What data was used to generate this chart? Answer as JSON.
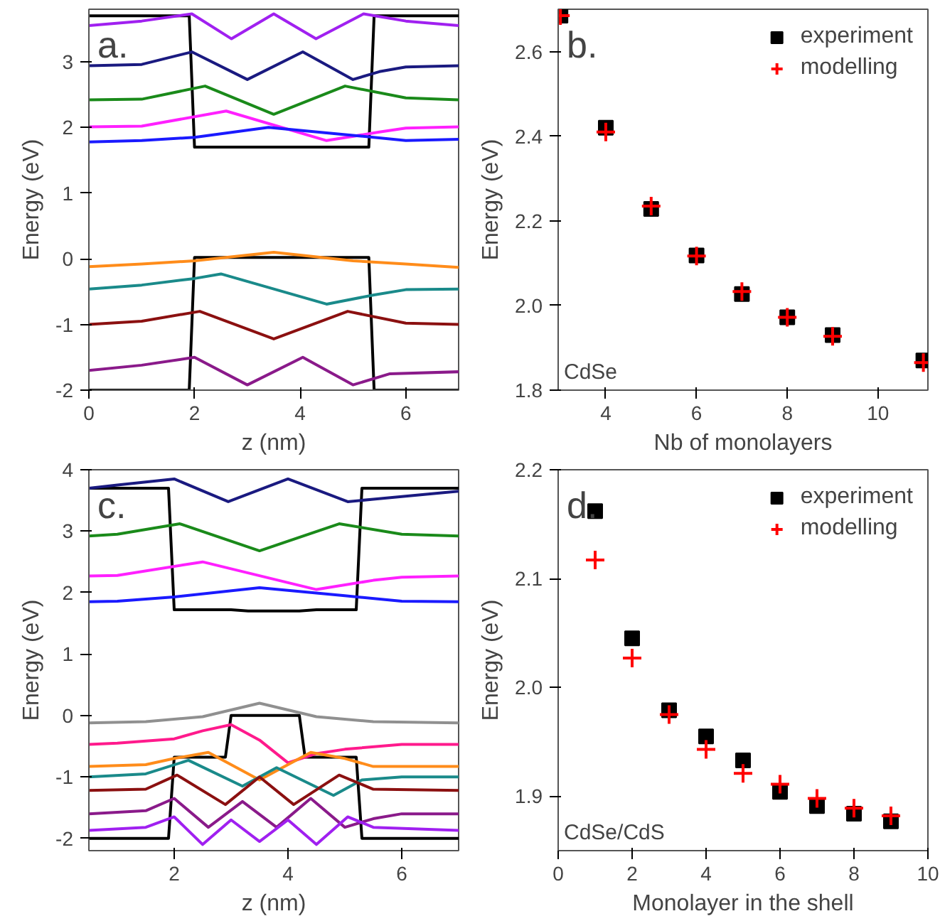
{
  "chart_data": [
    {
      "type": "line",
      "xlabel": "z (nm)",
      "ylabel": "Energy (eV)",
      "annotations": [
        "a."
      ],
      "xlim": [
        0,
        7
      ],
      "ylim": [
        -2,
        3.8
      ],
      "xticks": [
        0,
        2,
        4,
        6
      ],
      "yticks": [
        -2,
        -1,
        0,
        1,
        2,
        3
      ],
      "grid": false,
      "legend": false,
      "line_style": "solid",
      "series": [
        {
          "color": "#000000",
          "x": [
            0,
            1.9,
            2,
            5.3,
            5.4,
            7
          ],
          "values": [
            3.7,
            3.7,
            1.7,
            1.7,
            3.7,
            3.7
          ]
        },
        {
          "color": "#000000",
          "x": [
            0,
            1.9,
            2,
            5.3,
            5.4,
            7
          ],
          "values": [
            -2,
            -2,
            0.02,
            0.02,
            -2,
            -2
          ]
        },
        {
          "color": "#a020f0",
          "x": [
            0,
            1,
            1.95,
            2.7,
            3.5,
            4.3,
            5.2,
            6,
            7
          ],
          "values": [
            3.55,
            3.62,
            3.73,
            3.35,
            3.73,
            3.35,
            3.73,
            3.62,
            3.55
          ]
        },
        {
          "color": "#1a1a80",
          "x": [
            0,
            1,
            1.95,
            3.0,
            4.05,
            5.0,
            5.5,
            6,
            7
          ],
          "values": [
            2.94,
            2.96,
            3.15,
            2.73,
            3.15,
            2.73,
            2.85,
            2.92,
            2.94
          ]
        },
        {
          "color": "#1a8a1a",
          "x": [
            0,
            1,
            2.2,
            3.5,
            4.85,
            6,
            7
          ],
          "values": [
            2.42,
            2.43,
            2.63,
            2.2,
            2.63,
            2.45,
            2.42
          ]
        },
        {
          "color": "#ff20ff",
          "x": [
            0,
            1,
            2.6,
            4.5,
            5.5,
            6,
            7
          ],
          "values": [
            2.01,
            2.02,
            2.25,
            1.8,
            1.93,
            1.99,
            2.01
          ]
        },
        {
          "color": "#1a1aff",
          "x": [
            0,
            1,
            2,
            3.4,
            5,
            6,
            7
          ],
          "values": [
            1.78,
            1.8,
            1.85,
            2.0,
            1.88,
            1.8,
            1.82
          ]
        },
        {
          "color": "#ff8c1a",
          "x": [
            0,
            1,
            2,
            3.5,
            5,
            6,
            7
          ],
          "values": [
            -0.12,
            -0.08,
            -0.03,
            0.1,
            -0.03,
            -0.08,
            -0.13
          ]
        },
        {
          "color": "#1a8a8a",
          "x": [
            0,
            1,
            2,
            2.5,
            4.5,
            5.4,
            6,
            7
          ],
          "values": [
            -0.46,
            -0.4,
            -0.3,
            -0.23,
            -0.69,
            -0.55,
            -0.47,
            -0.46
          ]
        },
        {
          "color": "#8b1010",
          "x": [
            0,
            1,
            2.1,
            3.5,
            4.9,
            6,
            7
          ],
          "values": [
            -1.0,
            -0.95,
            -0.8,
            -1.22,
            -0.8,
            -0.98,
            -1.0
          ]
        },
        {
          "color": "#8a1a8a",
          "x": [
            0,
            1,
            2,
            3,
            4.05,
            5.0,
            5.7,
            7
          ],
          "values": [
            -1.7,
            -1.62,
            -1.5,
            -1.92,
            -1.5,
            -1.92,
            -1.75,
            -1.72
          ]
        }
      ]
    },
    {
      "type": "scatter",
      "xlabel": "Nb of monolayers",
      "ylabel": "Energy (eV)",
      "annotations": [
        "b.",
        "CdSe"
      ],
      "xlim": [
        2.95,
        11.1
      ],
      "ylim": [
        1.8,
        2.7
      ],
      "xticks": [
        4,
        6,
        8,
        10
      ],
      "yticks": [
        1.8,
        {
          "value": 2,
          "label": "2.0"
        },
        2.2,
        2.4,
        2.6
      ],
      "grid": false,
      "legend": "top right",
      "series": [
        {
          "name": "experiment",
          "color": "#000000",
          "marker": "square",
          "x": [
            3,
            4,
            5,
            6,
            7,
            8,
            9,
            11
          ],
          "values": [
            2.685,
            2.42,
            2.228,
            2.118,
            2.027,
            1.972,
            1.93,
            1.87
          ]
        },
        {
          "name": "modelling",
          "color": "#ff0000",
          "marker": "cross",
          "x": [
            3,
            4,
            5,
            6,
            7,
            8,
            9,
            11
          ],
          "values": [
            2.685,
            2.41,
            2.235,
            2.117,
            2.033,
            1.972,
            1.927,
            1.865
          ]
        }
      ]
    },
    {
      "type": "line",
      "xlabel": "z (nm)",
      "ylabel": "Energy (eV)",
      "annotations": [
        "c."
      ],
      "xlim": [
        0.5,
        7
      ],
      "ylim": [
        -2.2,
        4
      ],
      "xticks": [
        2,
        4,
        6
      ],
      "yticks": [
        -2,
        -1,
        0,
        1,
        2,
        3,
        4
      ],
      "grid": false,
      "legend": false,
      "line_style": "solid",
      "series": [
        {
          "color": "#000000",
          "x": [
            0.5,
            1.9,
            2.0,
            3,
            3.3,
            4.2,
            4.5,
            5.2,
            5.3,
            7
          ],
          "values": [
            3.7,
            3.7,
            1.72,
            1.72,
            1.7,
            1.7,
            1.72,
            1.72,
            3.7,
            3.7
          ]
        },
        {
          "color": "#000000",
          "x": [
            0.5,
            1.9,
            2,
            2.9,
            3,
            4.2,
            4.3,
            5.2,
            5.3,
            7
          ],
          "values": [
            -2,
            -2,
            -0.68,
            -0.68,
            0,
            0,
            -0.68,
            -0.68,
            -2,
            -2
          ]
        },
        {
          "color": "#1a1a80",
          "x": [
            0.5,
            1,
            2,
            2.95,
            4,
            5.05,
            5.5,
            7
          ],
          "values": [
            3.7,
            3.75,
            3.85,
            3.48,
            3.85,
            3.48,
            3.52,
            3.65
          ]
        },
        {
          "color": "#1a8a1a",
          "x": [
            0.5,
            1,
            2.1,
            3.5,
            4.9,
            6,
            7
          ],
          "values": [
            2.92,
            2.95,
            3.12,
            2.68,
            3.12,
            2.95,
            2.92
          ]
        },
        {
          "color": "#ff20ff",
          "x": [
            0.5,
            1,
            2.5,
            4.5,
            5.5,
            6,
            7
          ],
          "values": [
            2.27,
            2.28,
            2.5,
            2.05,
            2.2,
            2.25,
            2.27
          ]
        },
        {
          "color": "#1a1aff",
          "x": [
            0.5,
            1,
            2,
            3.5,
            5,
            6,
            7
          ],
          "values": [
            1.85,
            1.86,
            1.93,
            2.08,
            1.95,
            1.86,
            1.85
          ]
        },
        {
          "color": "#909090",
          "x": [
            0.5,
            1.5,
            2.5,
            3.5,
            4.5,
            5.5,
            7
          ],
          "values": [
            -0.12,
            -0.1,
            -0.02,
            0.2,
            -0.02,
            -0.1,
            -0.12
          ]
        },
        {
          "color": "#ff1a8c",
          "x": [
            0.5,
            1,
            2,
            2.5,
            3.0,
            3.5,
            4.0,
            4.5,
            5,
            6,
            7
          ],
          "values": [
            -0.47,
            -0.45,
            -0.38,
            -0.25,
            -0.15,
            -0.4,
            -0.77,
            -0.62,
            -0.55,
            -0.47,
            -0.47
          ]
        },
        {
          "color": "#ff8c1a",
          "x": [
            0.5,
            1.5,
            2,
            2.6,
            3.5,
            4.4,
            5,
            5.5,
            7
          ],
          "values": [
            -0.83,
            -0.8,
            -0.7,
            -0.6,
            -1.05,
            -0.6,
            -0.7,
            -0.83,
            -0.83
          ]
        },
        {
          "color": "#1a8a8a",
          "x": [
            0.5,
            1.5,
            2.25,
            3.2,
            3.8,
            4.8,
            5.3,
            6,
            7
          ],
          "values": [
            -1.0,
            -0.95,
            -0.73,
            -1.15,
            -0.85,
            -1.3,
            -1.05,
            -1.0,
            -1.0
          ]
        },
        {
          "color": "#8b1010",
          "x": [
            0.5,
            1.5,
            2.05,
            2.9,
            3.5,
            4.1,
            4.9,
            5.5,
            7
          ],
          "values": [
            -1.22,
            -1.2,
            -0.97,
            -1.45,
            -1.0,
            -1.45,
            -0.97,
            -1.2,
            -1.22
          ]
        },
        {
          "color": "#8a1a8a",
          "x": [
            0.5,
            1.5,
            2,
            2.6,
            3.2,
            3.8,
            4.4,
            5,
            5.5,
            6,
            7
          ],
          "values": [
            -1.6,
            -1.55,
            -1.35,
            -1.82,
            -1.4,
            -1.82,
            -1.35,
            -1.82,
            -1.68,
            -1.6,
            -1.6
          ]
        },
        {
          "color": "#a020f0",
          "x": [
            0.5,
            1.5,
            2,
            2.5,
            3,
            3.5,
            4,
            4.5,
            5.05,
            5.5,
            7
          ],
          "values": [
            -1.87,
            -1.82,
            -1.65,
            -2.1,
            -1.7,
            -2.05,
            -1.7,
            -2.1,
            -1.65,
            -1.82,
            -1.87
          ]
        }
      ]
    },
    {
      "type": "scatter",
      "xlabel": "Monolayer in the shell",
      "ylabel": "Energy (eV)",
      "annotations": [
        "d.",
        "CdSe/CdS"
      ],
      "xlim": [
        0,
        10
      ],
      "ylim": [
        1.85,
        2.2
      ],
      "xticks": [
        0,
        2,
        4,
        6,
        8,
        10
      ],
      "yticks": [
        1.9,
        {
          "value": 2,
          "label": "2.0"
        },
        2.1,
        2.2
      ],
      "grid": false,
      "legend": "top right",
      "series": [
        {
          "name": "experiment",
          "color": "#000000",
          "marker": "square",
          "x": [
            1,
            2,
            3,
            4,
            5,
            6,
            7,
            8,
            9
          ],
          "values": [
            2.162,
            2.045,
            1.979,
            1.955,
            1.933,
            1.904,
            1.891,
            1.884,
            1.877
          ]
        },
        {
          "name": "modelling",
          "color": "#ff0000",
          "marker": "cross",
          "x": [
            1,
            2,
            3,
            4,
            5,
            6,
            7,
            8,
            9
          ],
          "values": [
            2.117,
            2.027,
            1.975,
            1.943,
            1.921,
            1.911,
            1.898,
            1.889,
            1.882
          ]
        }
      ]
    }
  ]
}
